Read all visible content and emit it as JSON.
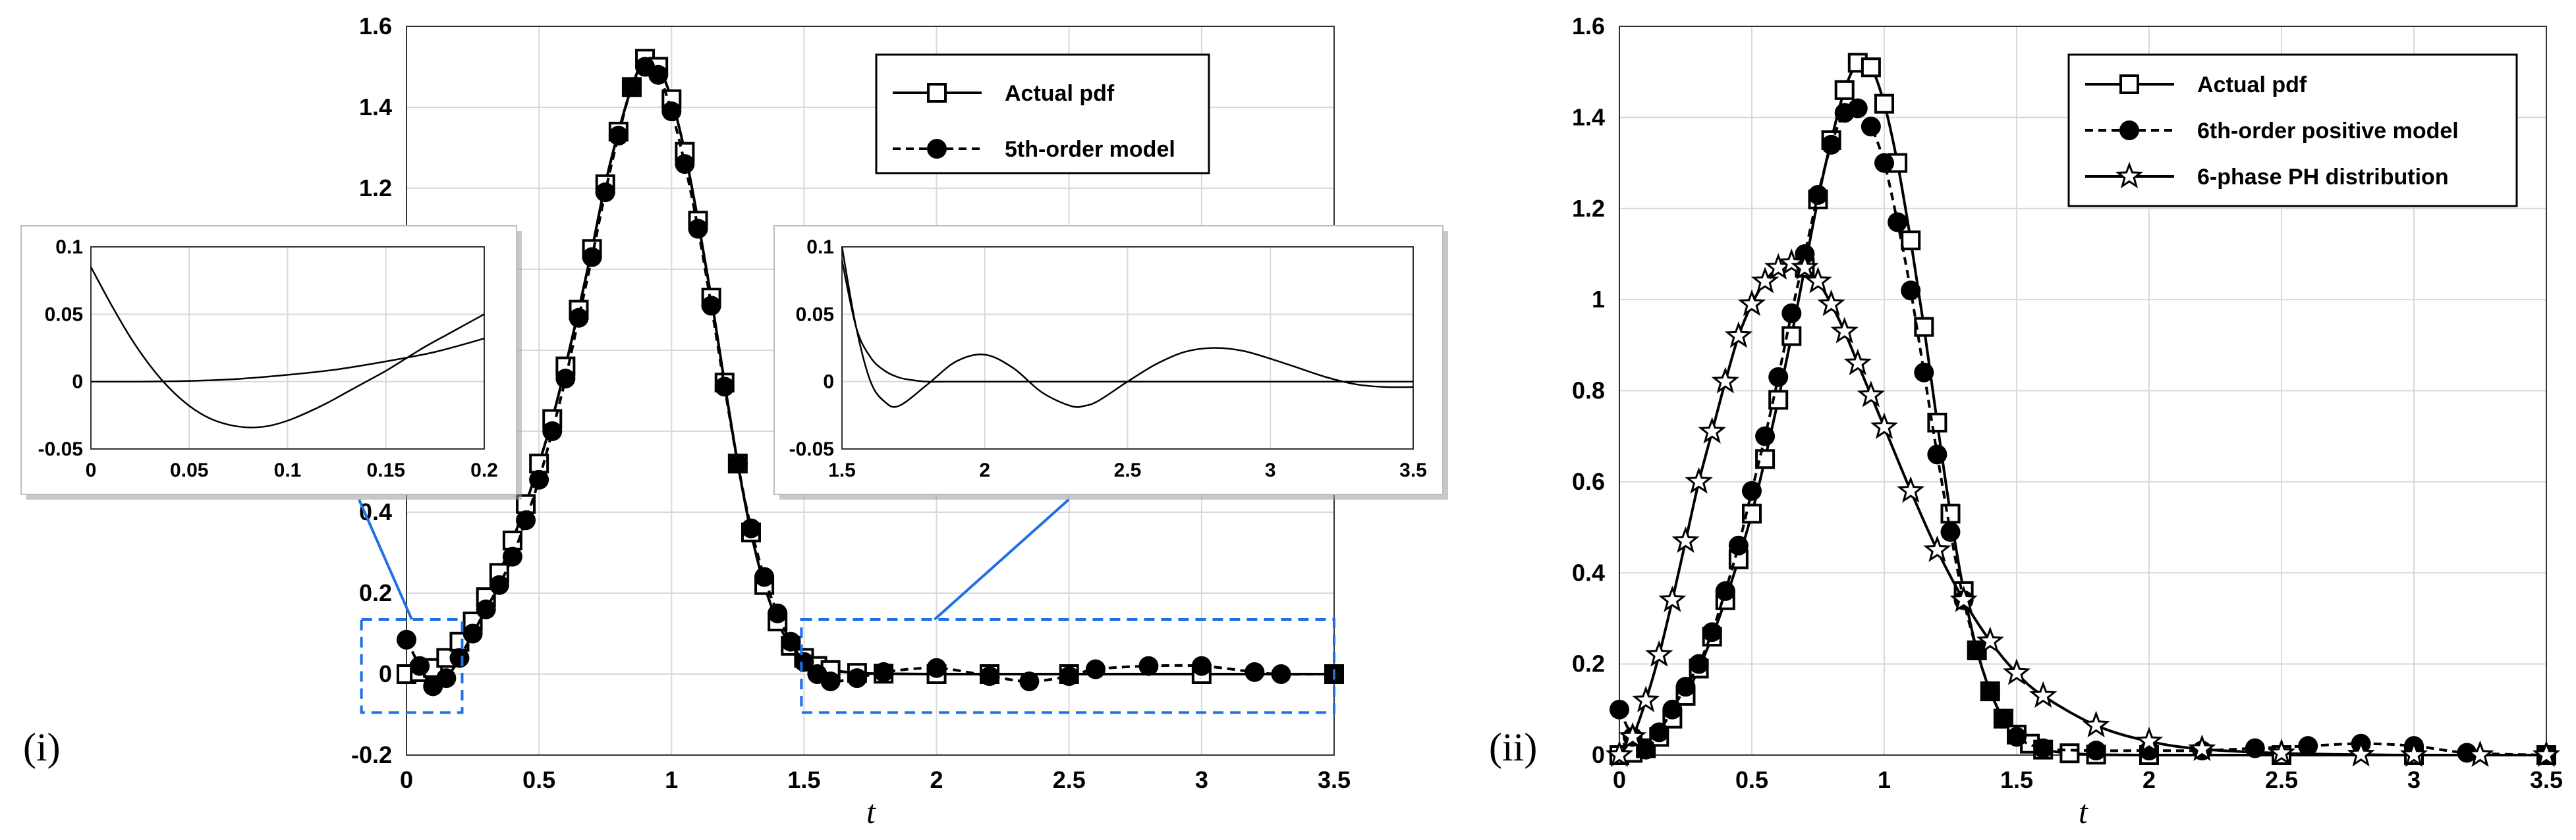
{
  "chart_data": [
    {
      "panel": "(i)",
      "type": "line",
      "xlabel": "t",
      "xlim": [
        0,
        3.5
      ],
      "ylim": [
        -0.2,
        1.6
      ],
      "xticks": [
        "0",
        "0.5",
        "1",
        "1.5",
        "2",
        "2.5",
        "3",
        "3.5"
      ],
      "yticks": [
        "-0.2",
        "0",
        "0.2",
        "0.4",
        "0.6",
        "0.8",
        "1",
        "1.2",
        "1.4",
        "1.6"
      ],
      "grid": true,
      "legend_position": "top-right",
      "series": [
        {
          "name": "Actual pdf",
          "style": "solid",
          "marker": "square",
          "x": [
            0,
            0.05,
            0.1,
            0.15,
            0.2,
            0.25,
            0.3,
            0.35,
            0.4,
            0.45,
            0.5,
            0.55,
            0.6,
            0.65,
            0.7,
            0.75,
            0.8,
            0.85,
            0.9,
            0.95,
            1.0,
            1.05,
            1.1,
            1.15,
            1.2,
            1.25,
            1.3,
            1.35,
            1.4,
            1.45,
            1.5,
            1.55,
            1.6,
            1.7,
            1.8,
            2.0,
            2.2,
            2.5,
            3.0,
            3.5
          ],
          "y": [
            0,
            0.005,
            0.015,
            0.04,
            0.08,
            0.13,
            0.19,
            0.25,
            0.33,
            0.42,
            0.52,
            0.63,
            0.76,
            0.9,
            1.05,
            1.21,
            1.34,
            1.45,
            1.52,
            1.5,
            1.42,
            1.29,
            1.12,
            0.93,
            0.72,
            0.52,
            0.35,
            0.22,
            0.13,
            0.07,
            0.04,
            0.02,
            0.01,
            0.003,
            0.001,
            0,
            0,
            0,
            0,
            0
          ]
        },
        {
          "name": "5th-order model",
          "style": "dashed",
          "marker": "circle",
          "x": [
            0,
            0.05,
            0.1,
            0.15,
            0.2,
            0.25,
            0.3,
            0.35,
            0.4,
            0.45,
            0.5,
            0.55,
            0.6,
            0.65,
            0.7,
            0.75,
            0.8,
            0.85,
            0.9,
            0.95,
            1.0,
            1.05,
            1.1,
            1.15,
            1.2,
            1.25,
            1.3,
            1.35,
            1.4,
            1.45,
            1.5,
            1.55,
            1.6,
            1.7,
            1.8,
            2.0,
            2.2,
            2.35,
            2.5,
            2.6,
            2.8,
            3.0,
            3.2,
            3.3,
            3.5
          ],
          "y": [
            0.085,
            0.02,
            -0.03,
            -0.01,
            0.04,
            0.1,
            0.16,
            0.22,
            0.29,
            0.38,
            0.48,
            0.6,
            0.73,
            0.88,
            1.03,
            1.19,
            1.33,
            1.45,
            1.5,
            1.48,
            1.39,
            1.26,
            1.1,
            0.91,
            0.71,
            0.52,
            0.36,
            0.24,
            0.15,
            0.08,
            0.03,
            0.0,
            -0.018,
            -0.01,
            0.005,
            0.015,
            -0.005,
            -0.018,
            -0.005,
            0.012,
            0.02,
            0.02,
            0.005,
            0.0,
            0.0
          ]
        }
      ],
      "insets": [
        {
          "xlim": [
            0,
            0.2
          ],
          "ylim": [
            -0.05,
            0.1
          ],
          "xticks": [
            "0",
            "0.05",
            "0.1",
            "0.15",
            "0.2"
          ],
          "yticks": [
            "-0.05",
            "0",
            "0.05",
            "0.1"
          ],
          "series": [
            {
              "name": "Actual pdf",
              "x": [
                0,
                0.025,
                0.05,
                0.075,
                0.1,
                0.125,
                0.15,
                0.175,
                0.2
              ],
              "y": [
                0,
                0,
                0.0005,
                0.002,
                0.005,
                0.009,
                0.015,
                0.022,
                0.032
              ]
            },
            {
              "name": "5th-order model",
              "x": [
                0,
                0.01,
                0.02,
                0.03,
                0.04,
                0.05,
                0.06,
                0.07,
                0.08,
                0.09,
                0.1,
                0.11,
                0.12,
                0.13,
                0.14,
                0.15,
                0.16,
                0.17,
                0.18,
                0.19,
                0.2
              ],
              "y": [
                0.085,
                0.058,
                0.033,
                0.012,
                -0.005,
                -0.018,
                -0.027,
                -0.032,
                -0.034,
                -0.033,
                -0.029,
                -0.023,
                -0.016,
                -0.008,
                0.0,
                0.008,
                0.017,
                0.026,
                0.034,
                0.042,
                0.05
              ]
            }
          ]
        },
        {
          "xlim": [
            1.5,
            3.5
          ],
          "ylim": [
            -0.05,
            0.1
          ],
          "xticks": [
            "1.5",
            "2",
            "2.5",
            "3",
            "3.5"
          ],
          "yticks": [
            "-0.05",
            "0",
            "0.05",
            "0.1"
          ],
          "series": [
            {
              "name": "Actual pdf",
              "x": [
                1.5,
                1.55,
                1.6,
                1.65,
                1.7,
                1.75,
                1.8,
                1.9,
                2.0,
                2.5,
                3.0,
                3.5
              ],
              "y": [
                0.09,
                0.04,
                0.018,
                0.008,
                0.003,
                0.001,
                0,
                0,
                0,
                0,
                0,
                0
              ]
            },
            {
              "name": "5th-order model",
              "x": [
                1.5,
                1.55,
                1.6,
                1.65,
                1.7,
                1.8,
                1.9,
                2.0,
                2.1,
                2.2,
                2.3,
                2.35,
                2.4,
                2.5,
                2.6,
                2.7,
                2.8,
                2.9,
                3.0,
                3.1,
                3.2,
                3.3,
                3.4,
                3.5
              ],
              "y": [
                0.1,
                0.04,
                0.0,
                -0.015,
                -0.018,
                -0.002,
                0.015,
                0.02,
                0.01,
                -0.008,
                -0.018,
                -0.018,
                -0.014,
                0.0,
                0.013,
                0.022,
                0.025,
                0.023,
                0.017,
                0.01,
                0.003,
                -0.002,
                -0.004,
                -0.004
              ]
            }
          ]
        }
      ]
    },
    {
      "panel": "(ii)",
      "type": "line",
      "xlabel": "t",
      "xlim": [
        0,
        3.5
      ],
      "ylim": [
        0,
        1.6
      ],
      "xticks": [
        "0",
        "0.5",
        "1",
        "1.5",
        "2",
        "2.5",
        "3",
        "3.5"
      ],
      "yticks": [
        "0",
        "0.2",
        "0.4",
        "0.6",
        "0.8",
        "1",
        "1.2",
        "1.4",
        "1.6"
      ],
      "grid": true,
      "legend_position": "top-right",
      "series": [
        {
          "name": "Actual pdf",
          "style": "solid",
          "marker": "square",
          "x": [
            0,
            0.05,
            0.1,
            0.15,
            0.2,
            0.25,
            0.3,
            0.35,
            0.4,
            0.45,
            0.5,
            0.55,
            0.6,
            0.65,
            0.7,
            0.75,
            0.8,
            0.85,
            0.9,
            0.95,
            1.0,
            1.05,
            1.1,
            1.15,
            1.2,
            1.25,
            1.3,
            1.35,
            1.4,
            1.45,
            1.5,
            1.55,
            1.6,
            1.7,
            1.8,
            2.0,
            2.5,
            3.0,
            3.5
          ],
          "y": [
            0,
            0.005,
            0.015,
            0.04,
            0.08,
            0.13,
            0.19,
            0.26,
            0.34,
            0.43,
            0.53,
            0.65,
            0.78,
            0.92,
            1.07,
            1.22,
            1.35,
            1.46,
            1.52,
            1.51,
            1.43,
            1.3,
            1.13,
            0.94,
            0.73,
            0.53,
            0.36,
            0.23,
            0.14,
            0.08,
            0.045,
            0.025,
            0.012,
            0.004,
            0.001,
            0,
            0,
            0,
            0
          ]
        },
        {
          "name": "6th-order positive model",
          "style": "dashed",
          "marker": "circle",
          "x": [
            0,
            0.05,
            0.1,
            0.15,
            0.2,
            0.25,
            0.3,
            0.35,
            0.4,
            0.45,
            0.5,
            0.55,
            0.6,
            0.65,
            0.7,
            0.75,
            0.8,
            0.85,
            0.9,
            0.95,
            1.0,
            1.05,
            1.1,
            1.15,
            1.2,
            1.25,
            1.3,
            1.35,
            1.4,
            1.45,
            1.5,
            1.6,
            1.8,
            2.0,
            2.2,
            2.4,
            2.6,
            2.8,
            3.0,
            3.2,
            3.5
          ],
          "y": [
            0.1,
            0.04,
            0.012,
            0.05,
            0.1,
            0.15,
            0.2,
            0.27,
            0.36,
            0.46,
            0.58,
            0.7,
            0.83,
            0.97,
            1.1,
            1.23,
            1.34,
            1.41,
            1.42,
            1.38,
            1.3,
            1.17,
            1.02,
            0.84,
            0.66,
            0.49,
            0.34,
            0.23,
            0.14,
            0.08,
            0.04,
            0.015,
            0.01,
            0.01,
            0.01,
            0.015,
            0.02,
            0.025,
            0.02,
            0.005,
            0.0
          ]
        },
        {
          "name": "6-phase PH distribution",
          "style": "solid",
          "marker": "star",
          "x": [
            0,
            0.05,
            0.1,
            0.15,
            0.2,
            0.25,
            0.3,
            0.35,
            0.4,
            0.45,
            0.5,
            0.55,
            0.6,
            0.65,
            0.7,
            0.75,
            0.8,
            0.85,
            0.9,
            0.95,
            1.0,
            1.1,
            1.2,
            1.3,
            1.4,
            1.5,
            1.6,
            1.8,
            2.0,
            2.2,
            2.5,
            2.8,
            3.0,
            3.25,
            3.5
          ],
          "y": [
            0,
            0.04,
            0.12,
            0.22,
            0.34,
            0.47,
            0.6,
            0.71,
            0.82,
            0.92,
            0.99,
            1.04,
            1.07,
            1.08,
            1.07,
            1.04,
            0.99,
            0.93,
            0.86,
            0.79,
            0.72,
            0.58,
            0.45,
            0.34,
            0.25,
            0.18,
            0.13,
            0.065,
            0.03,
            0.013,
            0.004,
            0.001,
            0,
            0,
            0
          ]
        }
      ]
    }
  ]
}
